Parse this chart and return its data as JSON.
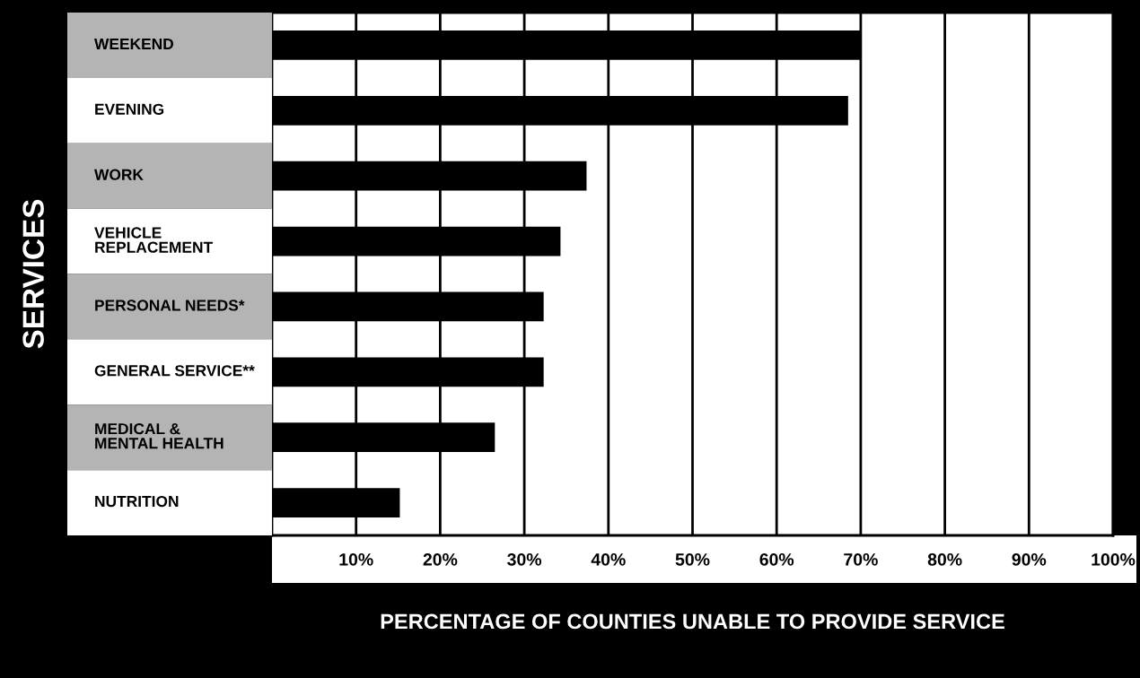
{
  "chart_data": {
    "type": "bar",
    "orientation": "horizontal",
    "categories": [
      "WEEKEND",
      "EVENING",
      "WORK",
      "VEHICLE\nREPLACEMENT",
      "PERSONAL NEEDS*",
      "GENERAL SERVICE**",
      "MEDICAL &\nMENTAL HEALTH",
      "NUTRITION"
    ],
    "values": [
      70,
      68.5,
      37.4,
      34.3,
      32.3,
      32.3,
      26.5,
      15.2
    ],
    "color": "#000000",
    "xlim": [
      0,
      100
    ],
    "xticks": [
      {
        "value": 10,
        "label": "10%"
      },
      {
        "value": 20,
        "label": "20%"
      },
      {
        "value": 30,
        "label": "30%"
      },
      {
        "value": 40,
        "label": "40%"
      },
      {
        "value": 50,
        "label": "50%"
      },
      {
        "value": 60,
        "label": "60%"
      },
      {
        "value": 70,
        "label": "70%"
      },
      {
        "value": 80,
        "label": "80%"
      },
      {
        "value": 90,
        "label": "90%"
      },
      {
        "value": 100,
        "label": "100%"
      }
    ],
    "xlabel": "PERCENTAGE OF COUNTIES UNABLE TO PROVIDE SERVICE",
    "ylabel": "SERVICES",
    "grid": "x"
  }
}
